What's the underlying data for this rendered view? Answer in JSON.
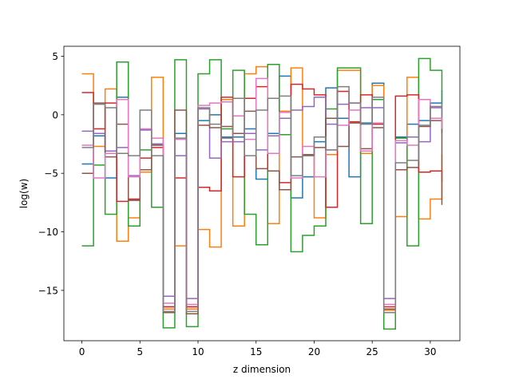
{
  "chart_data": {
    "type": "line",
    "step": "post",
    "xlabel": "z dimension",
    "ylabel": "log(w)",
    "xlim": [
      -1.55,
      32.55
    ],
    "ylim": [
      -19.3,
      5.85
    ],
    "xticks": [
      0,
      5,
      10,
      15,
      20,
      25,
      30
    ],
    "xtick_labels": [
      "0",
      "5",
      "10",
      "15",
      "20",
      "25",
      "30"
    ],
    "yticks": [
      5,
      0,
      -5,
      -10,
      -15
    ],
    "ytick_labels": [
      "5",
      "0",
      "−5",
      "−10",
      "−15"
    ],
    "grid": false,
    "x": [
      0,
      1,
      2,
      3,
      4,
      5,
      6,
      7,
      8,
      9,
      10,
      11,
      12,
      13,
      14,
      15,
      16,
      17,
      18,
      19,
      20,
      21,
      22,
      23,
      24,
      25,
      26,
      27,
      28,
      29,
      30,
      31
    ],
    "series": [
      {
        "color": "#1f77b4",
        "values": [
          -4.2,
          -1.8,
          -5.4,
          1.5,
          -7.3,
          -1.3,
          -2.5,
          -16.4,
          -1.6,
          -16.4,
          -0.5,
          0.0,
          -1.9,
          -1.9,
          -1.2,
          -5.5,
          -1.6,
          3.3,
          -7.1,
          -5.3,
          -2.3,
          2.3,
          -0.3,
          -5.3,
          -0.7,
          2.7,
          -16.6,
          -1.9,
          -0.8,
          -0.5,
          1.0,
          2.1
        ]
      },
      {
        "color": "#ff7f0e",
        "values": [
          3.5,
          -2.7,
          2.2,
          -10.8,
          -8.8,
          -4.9,
          3.2,
          -16.6,
          -11.2,
          -16.6,
          -9.8,
          -11.3,
          1.3,
          -9.5,
          3.5,
          4.1,
          -9.3,
          0.3,
          4.0,
          -3.5,
          -8.8,
          -3.4,
          3.8,
          3.8,
          -3.3,
          2.5,
          -16.7,
          -8.7,
          3.2,
          -8.9,
          -7.2,
          -3.4
        ]
      },
      {
        "color": "#2ca02c",
        "values": [
          -11.2,
          -4.3,
          -8.5,
          4.5,
          -9.5,
          -3.0,
          -7.9,
          -18.2,
          4.7,
          -18.1,
          3.5,
          4.7,
          -1.2,
          3.8,
          -8.5,
          -11.1,
          4.3,
          -1.7,
          -11.7,
          -10.3,
          -9.5,
          0.5,
          4.0,
          4.0,
          -9.3,
          1.3,
          -18.3,
          -2.0,
          -11.2,
          4.8,
          3.8,
          -1.6
        ]
      },
      {
        "color": "#d62728",
        "values": [
          1.9,
          -1.2,
          1.0,
          -7.4,
          -7.2,
          -3.7,
          -2.8,
          -16.4,
          -5.4,
          -16.4,
          -6.2,
          -6.5,
          1.5,
          -5.3,
          1.4,
          2.4,
          -4.8,
          -5.8,
          2.6,
          2.2,
          1.7,
          -7.9,
          2.0,
          -0.6,
          1.7,
          -0.8,
          -16.4,
          1.6,
          1.7,
          -4.9,
          -4.8,
          -5.7
        ]
      },
      {
        "color": "#9467bd",
        "values": [
          -1.4,
          -1.6,
          -3.1,
          -2.8,
          -5.2,
          -1.3,
          -2.5,
          -15.5,
          -3.5,
          -15.7,
          0.5,
          -3.7,
          -2.3,
          -2.3,
          -1.6,
          -3.0,
          -1.8,
          -0.3,
          0.4,
          0.7,
          1.5,
          -0.8,
          0.9,
          1.0,
          0.6,
          0.6,
          -15.7,
          -2.4,
          -1.9,
          -2.3,
          0.6,
          -1.3
        ]
      },
      {
        "color": "#8c564b",
        "values": [
          -5.0,
          1.0,
          -3.6,
          -0.8,
          -7.3,
          -4.7,
          -2.6,
          -16.9,
          0.4,
          -17.0,
          -0.9,
          -1.1,
          -1.0,
          -1.6,
          0.3,
          -4.6,
          -4.8,
          -6.4,
          -3.6,
          -3.4,
          -2.8,
          -0.3,
          -2.7,
          -0.7,
          -2.9,
          -1.1,
          -16.6,
          -4.7,
          -4.5,
          -1.0,
          -0.5,
          -7.7
        ]
      },
      {
        "color": "#e377c2",
        "values": [
          -2.6,
          -5.4,
          -3.3,
          1.3,
          -5.3,
          -1.2,
          -2.0,
          -16.1,
          -2.1,
          -16.2,
          0.8,
          1.0,
          1.1,
          -0.1,
          -2.1,
          3.1,
          -3.3,
          0.2,
          -5.4,
          -2.7,
          -5.3,
          -3.0,
          -0.9,
          0.4,
          -3.1,
          -0.7,
          -16.2,
          -2.2,
          -2.6,
          1.3,
          -0.3,
          -1.2
        ]
      },
      {
        "color": "#7f7f7f",
        "values": [
          -2.8,
          0.9,
          0.6,
          -3.3,
          -3.5,
          0.4,
          -3.5,
          -16.8,
          -2.0,
          -16.8,
          0.6,
          -0.8,
          -2.0,
          1.4,
          -3.5,
          0.4,
          1.4,
          1.6,
          -5.2,
          -3.5,
          -1.9,
          -3.0,
          2.4,
          1.0,
          -0.8,
          1.5,
          -16.9,
          -4.1,
          -3.9,
          -0.9,
          0.7,
          1.0
        ]
      }
    ]
  }
}
